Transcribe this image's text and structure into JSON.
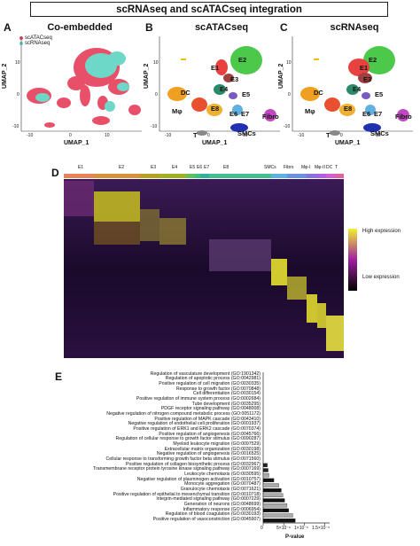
{
  "title": "scRNAseq and scATACseq integration",
  "panels": {
    "A": {
      "letter": "A",
      "title": "Co-embedded",
      "legend": [
        "scATACseq",
        "scRNAseq"
      ],
      "xlabel": "UMAP_1",
      "ylabel": "UMAP_2",
      "xticks": [
        "-10",
        "0",
        "10"
      ],
      "yticks": [
        "10",
        "0",
        "-10"
      ]
    },
    "B": {
      "letter": "B",
      "title": "scATACseq",
      "xlabel": "UMAP_1",
      "ylabel": "UMAP_2",
      "xticks": [
        "-10",
        "0",
        "10"
      ],
      "yticks": [
        "10",
        "0",
        "-10"
      ]
    },
    "C": {
      "letter": "C",
      "title": "scRNAseq",
      "xlabel": "UMAP_1",
      "ylabel": "UMAP_2",
      "xticks": [
        "-10",
        "0",
        "10"
      ],
      "yticks": [
        "10",
        "0",
        "-10"
      ]
    },
    "D": {
      "letter": "D",
      "clusters": [
        "E1",
        "E2",
        "E3",
        "E4",
        "E5",
        "E6",
        "E7",
        "E8",
        "SMCs",
        "Fibro",
        "Mφ-I",
        "Mφ-II",
        "DC",
        "T"
      ],
      "legend_high": "High expression",
      "legend_low": "Low expression"
    },
    "E": {
      "letter": "E",
      "xlabel": "P-value",
      "xticks": [
        "0",
        "5×10⁻⁶",
        "1×10⁻⁵",
        "1.5×10⁻⁵"
      ]
    }
  },
  "cluster_labels": {
    "E1": "E1",
    "E2": "E2",
    "E3": "E3",
    "E4": "E4",
    "E5": "E5",
    "E6": "E6",
    "E7": "E7",
    "E8": "E8",
    "DC": "DC",
    "Mphi": "Mφ",
    "Fibro": "Fibro",
    "T": "T",
    "SMCs": "SMCs"
  },
  "colors": {
    "scATAC": "#e8506a",
    "scRNA": "#6ed8c8"
  },
  "chart_data": {
    "type": "bar",
    "orientation": "horizontal",
    "categories": [
      "Regulation of vasculature development (GO:1901342)",
      "Regulation of apoptotic process (GO:0042981)",
      "Positive regulation of cell migration (GO:0030335)",
      "Response to growth factor (GO:0070848)",
      "Cell differentiation (GO:0030154)",
      "Positive regulation of immune system process (GO:0002684)",
      "Tube development (GO:0035295)",
      "PDGF receptor signaling pathway (GO:0048008)",
      "Negative regulation of nitrogen compound metabolic process (GO:0051172)",
      "Positive regulation of MAPK cascade (GO:0043410)",
      "Negative regulation of endothelial cell proliferation (GO:0001937)",
      "Positive regulation of ERK1 and ERK2 cascade (GO:0070374)",
      "Positive regulation of angiogenesis (GO:0045766)",
      "Regulation of cellular response to growth factor stimulus (GO:0090287)",
      "Myeloid leukocyte migration (GO:0097529)",
      "Extracellular matrix organization (GO:0030198)",
      "Negative regulation of angiogenesis (GO:0016525)",
      "Cellular response to transforming growth factor beta stimulus (GO:0071560)",
      "Positive regulation of collagen biosynthetic process (GO:0032967)",
      "Transmembrane receptor protein tyrosine kinase signaling pathway (GO:0007169)",
      "Leukocyte chemotaxis (GO:0030595)",
      "Negative regulation of plasminogen activation (GO:0010757)",
      "Monocyte aggregation (GO:0070487)",
      "Granulocyte chemotaxis (GO:0071621)",
      "Positive regulation of epithelial to mesenchymal transition (GO:0010718)",
      "Integrin-mediated signaling pathway (GO:0007229)",
      "Generation of neurons (GO:0048699)",
      "Inflammatory response (GO:0006954)",
      "Regulation of blood coagulation (GO:0030193)",
      "Positive regulation of vasoconstriction (GO:0045907)"
    ],
    "values": [
      0,
      0,
      0,
      0,
      0,
      0,
      0,
      0,
      0,
      0,
      0,
      0,
      0,
      0,
      0,
      0,
      0,
      0,
      1e-06,
      1.2e-06,
      1.4e-06,
      2.6e-06,
      3.8e-06,
      4.4e-06,
      4.8e-06,
      5.2e-06,
      5.8e-06,
      6.2e-06,
      7.2e-06,
      7.8e-06
    ],
    "xlabel": "P-value",
    "xlim": [
      0,
      1.55e-05
    ],
    "xticks": [
      0,
      5e-06,
      1e-05,
      1.5e-05
    ]
  }
}
